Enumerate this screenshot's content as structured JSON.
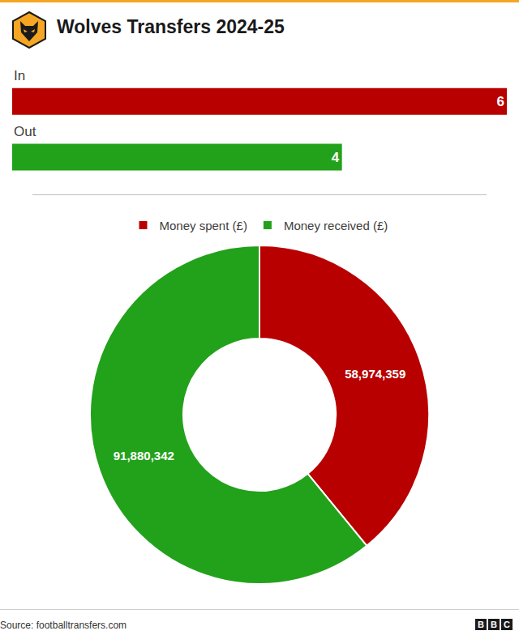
{
  "title": "Wolves Transfers 2024-25",
  "source": "Source: footballtransfers.com",
  "branding": "BBC",
  "chart_data": [
    {
      "type": "bar",
      "orientation": "horizontal",
      "categories": [
        "In",
        "Out"
      ],
      "values": [
        6,
        4
      ],
      "colors": [
        "#b80000",
        "#22a11b"
      ],
      "xlim": [
        0,
        6
      ],
      "data_labels": true,
      "tick_labels": false
    },
    {
      "type": "donut",
      "categories": [
        "Money spent (£)",
        "Money received (£)"
      ],
      "values": [
        58974359,
        91880342
      ],
      "value_labels": [
        "58,974,359",
        "91,880,342"
      ],
      "colors": [
        "#b80000",
        "#22a11b"
      ],
      "legend": "top",
      "data_labels": true
    }
  ]
}
